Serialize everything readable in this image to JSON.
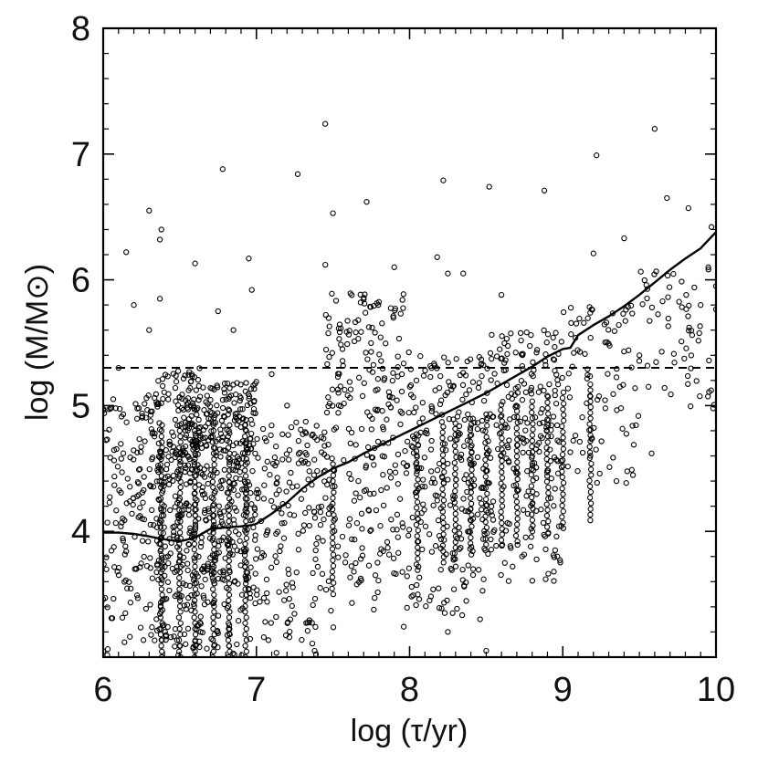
{
  "chart_data": {
    "type": "scatter",
    "title": "",
    "xlabel": "log (τ/yr)",
    "ylabel": "log (M/M⊙)",
    "xlim": [
      6,
      10
    ],
    "ylim": [
      3,
      8
    ],
    "x_ticks": [
      "6",
      "7",
      "8",
      "9",
      "10"
    ],
    "y_ticks": [
      "4",
      "5",
      "6",
      "7",
      "8"
    ],
    "grid": false,
    "legend": "none",
    "colors": {
      "points": "#000000",
      "lines": "#000000",
      "frame": "#000000"
    },
    "series": [
      {
        "type": "scatter",
        "marker": "open-circle",
        "description_note": "",
        "outliers": [
          [
            6.15,
            6.22
          ],
          [
            6.3,
            6.55
          ],
          [
            6.37,
            6.32
          ],
          [
            6.38,
            6.4
          ],
          [
            6.37,
            5.85
          ],
          [
            6.6,
            6.13
          ],
          [
            6.78,
            6.88
          ],
          [
            6.95,
            6.17
          ],
          [
            6.97,
            5.92
          ],
          [
            7.27,
            6.84
          ],
          [
            7.45,
            7.24
          ],
          [
            7.5,
            6.53
          ],
          [
            7.72,
            6.62
          ],
          [
            7.45,
            6.12
          ],
          [
            7.9,
            6.1
          ],
          [
            8.18,
            6.18
          ],
          [
            8.22,
            6.79
          ],
          [
            8.25,
            6.05
          ],
          [
            8.35,
            6.05
          ],
          [
            8.52,
            6.74
          ],
          [
            8.6,
            5.88
          ],
          [
            8.88,
            6.71
          ],
          [
            9.2,
            6.21
          ],
          [
            9.22,
            6.99
          ],
          [
            9.6,
            7.2
          ],
          [
            9.68,
            6.65
          ],
          [
            9.82,
            6.57
          ],
          [
            9.97,
            6.42
          ],
          [
            9.4,
            6.33
          ],
          [
            9.58,
            4.62
          ],
          [
            9.35,
            4.4
          ],
          [
            9.95,
            6.1
          ],
          [
            10.0,
            5.95
          ],
          [
            9.9,
            5.8
          ],
          [
            8.95,
            3.85
          ],
          [
            8.5,
            3.05
          ],
          [
            8.25,
            3.2
          ],
          [
            7.38,
            3.05
          ],
          [
            6.2,
            5.8
          ],
          [
            6.1,
            5.3
          ],
          [
            6.3,
            5.6
          ],
          [
            6.75,
            5.75
          ],
          [
            6.85,
            5.6
          ],
          [
            7.1,
            5.25
          ],
          [
            7.2,
            5.0
          ]
        ],
        "clusters": [
          {
            "x_range": [
              6.0,
              6.35
            ],
            "y_range": [
              3.0,
              5.1
            ],
            "count": 160
          },
          {
            "x_range": [
              6.35,
              6.65
            ],
            "y_range": [
              3.0,
              5.3
            ],
            "count": 340
          },
          {
            "x_range": [
              6.65,
              7.0
            ],
            "y_range": [
              3.0,
              5.2
            ],
            "count": 330
          },
          {
            "x_range": [
              7.0,
              7.45
            ],
            "y_range": [
              3.0,
              4.9
            ],
            "count": 170
          },
          {
            "x_range": [
              7.45,
              8.0
            ],
            "y_range": [
              3.2,
              5.9
            ],
            "count": 260
          },
          {
            "x_range": [
              8.0,
              8.5
            ],
            "y_range": [
              3.3,
              5.4
            ],
            "count": 240
          },
          {
            "x_range": [
              8.5,
              9.0
            ],
            "y_range": [
              3.6,
              5.6
            ],
            "count": 230
          },
          {
            "x_range": [
              9.0,
              9.5
            ],
            "y_range": [
              4.3,
              5.8
            ],
            "count": 90
          },
          {
            "x_range": [
              9.5,
              10.0
            ],
            "y_range": [
              4.9,
              6.1
            ],
            "count": 60
          }
        ],
        "columns": [
          6.38,
          6.5,
          6.6,
          6.72,
          6.82,
          6.93,
          7.5,
          8.05,
          8.22,
          8.3,
          8.4,
          8.5,
          8.6,
          8.7,
          8.8,
          8.9,
          9.0,
          9.18
        ]
      },
      {
        "type": "line",
        "style": "solid",
        "x": [
          6.0,
          6.1,
          6.2,
          6.3,
          6.38,
          6.5,
          6.6,
          6.7,
          6.8,
          6.9,
          6.97,
          7.0,
          7.1,
          7.2,
          7.3,
          7.4,
          7.5,
          7.6,
          7.7,
          7.8,
          7.9,
          8.0,
          8.1,
          8.2,
          8.3,
          8.4,
          8.5,
          8.6,
          8.7,
          8.8,
          8.9,
          9.0,
          9.05,
          9.1,
          9.2,
          9.3,
          9.4,
          9.5,
          9.6,
          9.7,
          9.8,
          9.9,
          10.0
        ],
        "y": [
          3.99,
          3.99,
          3.98,
          3.96,
          3.94,
          3.92,
          3.95,
          4.02,
          4.03,
          4.04,
          4.05,
          4.06,
          4.14,
          4.23,
          4.34,
          4.43,
          4.5,
          4.55,
          4.62,
          4.68,
          4.74,
          4.8,
          4.86,
          4.92,
          4.98,
          5.04,
          5.1,
          5.17,
          5.24,
          5.31,
          5.39,
          5.45,
          5.46,
          5.56,
          5.64,
          5.71,
          5.79,
          5.88,
          5.98,
          6.08,
          6.17,
          6.25,
          6.38
        ]
      },
      {
        "type": "line",
        "style": "dashed",
        "x": [
          6.0,
          10.0
        ],
        "y": [
          5.3,
          5.3
        ]
      }
    ]
  }
}
